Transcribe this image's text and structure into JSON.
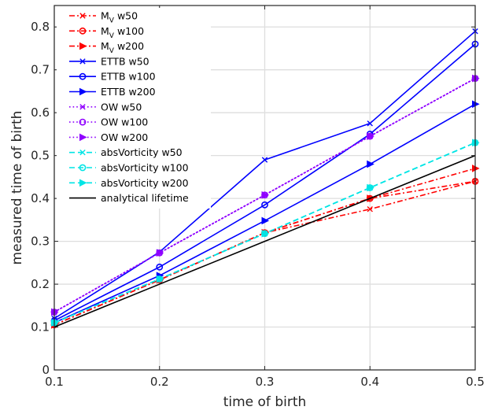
{
  "chart_data": {
    "type": "line",
    "xlabel": "time of birth",
    "ylabel": "measured time of birth",
    "xlim": [
      0.1,
      0.5
    ],
    "ylim": [
      0,
      0.85
    ],
    "xticks": [
      "0.1",
      "0.2",
      "0.3",
      "0.4",
      "0.5"
    ],
    "yticks": [
      "0",
      "0.1",
      "0.2",
      "0.3",
      "0.4",
      "0.5",
      "0.6",
      "0.7",
      "0.8"
    ],
    "grid": true,
    "legend_position": "top-left",
    "x": [
      0.1,
      0.2,
      0.3,
      0.4,
      0.5
    ],
    "series": [
      {
        "label_main": "M",
        "label_sub": "V",
        "label_rest": " w50",
        "values": [
          0.105,
          0.21,
          0.32,
          0.375,
          0.44
        ],
        "color": "#ff0000",
        "dash": "dashdot",
        "marker": "x"
      },
      {
        "label_main": "M",
        "label_sub": "V",
        "label_rest": " w100",
        "values": [
          0.105,
          0.21,
          0.32,
          0.4,
          0.44
        ],
        "color": "#ff0000",
        "dash": "dashdot",
        "marker": "o"
      },
      {
        "label_main": "M",
        "label_sub": "V",
        "label_rest": " w200",
        "values": [
          0.105,
          0.21,
          0.32,
          0.4,
          0.47
        ],
        "color": "#ff0000",
        "dash": "dashdot",
        "marker": "tri"
      },
      {
        "label_main": "ETTB w50",
        "values": [
          0.12,
          0.275,
          0.49,
          0.575,
          0.79
        ],
        "color": "#0000ff",
        "dash": "solid",
        "marker": "x"
      },
      {
        "label_main": "ETTB w100",
        "values": [
          0.115,
          0.24,
          0.385,
          0.55,
          0.76
        ],
        "color": "#0000ff",
        "dash": "solid",
        "marker": "o"
      },
      {
        "label_main": "ETTB w200",
        "values": [
          0.11,
          0.22,
          0.348,
          0.48,
          0.62
        ],
        "color": "#0000ff",
        "dash": "solid",
        "marker": "tri"
      },
      {
        "label_main": "OW w50",
        "values": [
          0.135,
          0.273,
          0.408,
          0.545,
          0.68
        ],
        "color": "#8f00ff",
        "dash": "dotted",
        "marker": "x"
      },
      {
        "label_main": "OW w100",
        "values": [
          0.135,
          0.273,
          0.408,
          0.545,
          0.68
        ],
        "color": "#8f00ff",
        "dash": "dotted",
        "marker": "o"
      },
      {
        "label_main": "OW w200",
        "values": [
          0.135,
          0.273,
          0.408,
          0.545,
          0.68
        ],
        "color": "#8f00ff",
        "dash": "dotted",
        "marker": "tri"
      },
      {
        "label_main": "absVorticity w50",
        "values": [
          0.11,
          0.212,
          0.318,
          0.425,
          0.53
        ],
        "color": "#00e5e5",
        "dash": "dashed",
        "marker": "x"
      },
      {
        "label_main": "absVorticity w100",
        "values": [
          0.11,
          0.212,
          0.318,
          0.425,
          0.53
        ],
        "color": "#00e5e5",
        "dash": "dashed",
        "marker": "o"
      },
      {
        "label_main": "absVorticity w200",
        "values": [
          0.11,
          0.212,
          0.318,
          0.425,
          0.53
        ],
        "color": "#00e5e5",
        "dash": "dashed",
        "marker": "tri"
      },
      {
        "label_main": "analytical lifetime",
        "values": [
          0.1,
          0.2,
          0.3,
          0.4,
          0.5
        ],
        "color": "#000000",
        "dash": "solid",
        "marker": "none"
      }
    ]
  }
}
